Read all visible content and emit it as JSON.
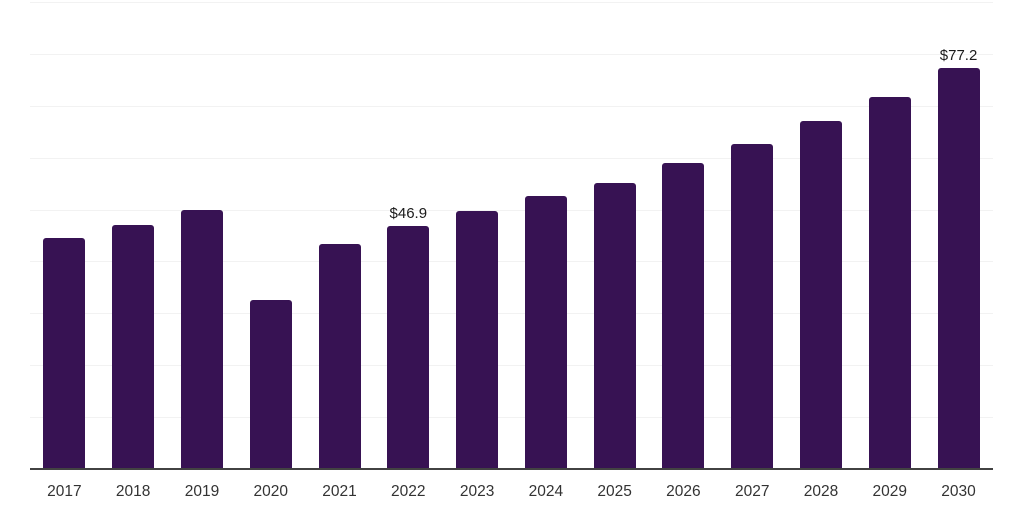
{
  "chart_data": {
    "type": "bar",
    "title": "",
    "xlabel": "",
    "ylabel": "",
    "categories": [
      "2017",
      "2018",
      "2019",
      "2020",
      "2021",
      "2022",
      "2023",
      "2024",
      "2025",
      "2026",
      "2027",
      "2028",
      "2029",
      "2030"
    ],
    "values": [
      44.6,
      47.1,
      49.9,
      32.6,
      43.4,
      46.9,
      49.7,
      52.6,
      55.2,
      58.9,
      62.7,
      67.1,
      71.7,
      77.2
    ],
    "value_labels": {
      "2022": "$46.9",
      "2030": "$77.2"
    },
    "ylim": [
      0,
      90
    ],
    "gridline_step": 10,
    "grid": true,
    "legend": false,
    "colors": {
      "bar": "#371253",
      "gridline": "#f2f2f2",
      "axis_line": "#424242",
      "value_label_text": "#1a1a1a",
      "tick_label_text": "#333333",
      "background": "#ffffff"
    }
  }
}
